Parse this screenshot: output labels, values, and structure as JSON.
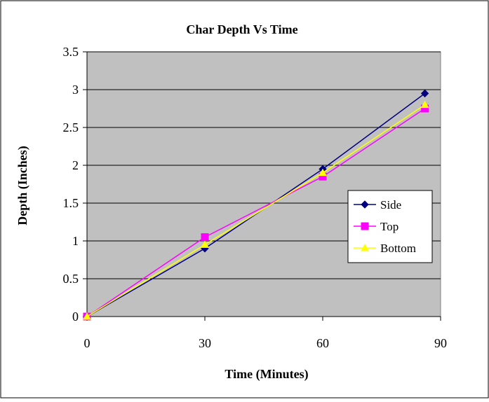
{
  "chart_data": {
    "type": "line",
    "title": "Char Depth Vs Time",
    "xlabel": "Time (Minutes)",
    "ylabel": "Depth (Inches)",
    "xlim": [
      0,
      90
    ],
    "ylim": [
      0,
      3.5
    ],
    "xticks": [
      0,
      30,
      60,
      90
    ],
    "yticks": [
      0,
      0.5,
      1,
      1.5,
      2,
      2.5,
      3,
      3.5
    ],
    "xtick_labels": [
      "0",
      "30",
      "60",
      "90"
    ],
    "ytick_labels": [
      "0",
      "0.5",
      "1",
      "1.5",
      "2",
      "2.5",
      "3",
      "3.5"
    ],
    "grid": "horizontal",
    "plot_background": "#C0C0C0",
    "legend_position": "right",
    "series": [
      {
        "name": "Side",
        "color": "#000080",
        "marker": "diamond",
        "x": [
          0,
          30,
          60,
          86
        ],
        "y": [
          0,
          0.9,
          1.95,
          2.95
        ]
      },
      {
        "name": "Top",
        "color": "#FF00FF",
        "marker": "square",
        "x": [
          0,
          30,
          60,
          86
        ],
        "y": [
          0,
          1.05,
          1.85,
          2.75
        ]
      },
      {
        "name": "Bottom",
        "color": "#FFFF00",
        "marker": "triangle",
        "x": [
          0,
          30,
          60,
          86
        ],
        "y": [
          0,
          0.95,
          1.9,
          2.8
        ]
      }
    ]
  }
}
